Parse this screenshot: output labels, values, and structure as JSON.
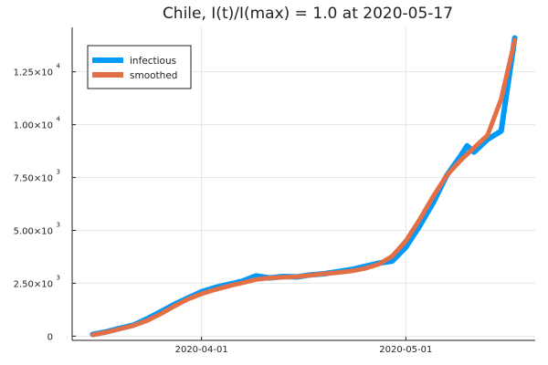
{
  "chart_data": {
    "type": "line",
    "title": "Chile,  I(t)/I(max) = 1.0 at 2020-05-17",
    "xlabel": "",
    "ylabel": "",
    "xlim": [
      "2020-03-13",
      "2020-05-20"
    ],
    "ylim": [
      -200,
      14600
    ],
    "x_ticks": [
      {
        "date": "2020-04-01",
        "label": "2020-04-01"
      },
      {
        "date": "2020-05-01",
        "label": "2020-05-01"
      }
    ],
    "y_ticks": [
      {
        "value": 0,
        "mantissa": "0",
        "exponent": ""
      },
      {
        "value": 2500,
        "mantissa": "2.50×10",
        "exponent": "3"
      },
      {
        "value": 5000,
        "mantissa": "5.00×10",
        "exponent": "3"
      },
      {
        "value": 7500,
        "mantissa": "7.50×10",
        "exponent": "3"
      },
      {
        "value": 10000,
        "mantissa": "1.00×10",
        "exponent": "4"
      },
      {
        "value": 12500,
        "mantissa": "1.25×10",
        "exponent": "4"
      }
    ],
    "grid": true,
    "legend_position": "top-left",
    "series": [
      {
        "name": "infectious",
        "color": "#009af9",
        "x": [
          "2020-03-16",
          "2020-03-18",
          "2020-03-20",
          "2020-03-22",
          "2020-03-24",
          "2020-03-26",
          "2020-03-28",
          "2020-03-30",
          "2020-04-01",
          "2020-04-03",
          "2020-04-05",
          "2020-04-07",
          "2020-04-09",
          "2020-04-11",
          "2020-04-13",
          "2020-04-15",
          "2020-04-17",
          "2020-04-19",
          "2020-04-21",
          "2020-04-23",
          "2020-04-25",
          "2020-04-27",
          "2020-04-29",
          "2020-05-01",
          "2020-05-03",
          "2020-05-05",
          "2020-05-07",
          "2020-05-09",
          "2020-05-10",
          "2020-05-11",
          "2020-05-13",
          "2020-05-15",
          "2020-05-17"
        ],
        "values": [
          80,
          200,
          370,
          520,
          820,
          1150,
          1500,
          1800,
          2100,
          2300,
          2450,
          2600,
          2850,
          2750,
          2820,
          2800,
          2900,
          2950,
          3050,
          3150,
          3300,
          3450,
          3550,
          4200,
          5200,
          6300,
          7600,
          8500,
          9000,
          8700,
          9300,
          9700,
          14100
        ]
      },
      {
        "name": "smoothed",
        "color": "#e26f46",
        "x": [
          "2020-03-16",
          "2020-03-18",
          "2020-03-20",
          "2020-03-22",
          "2020-03-24",
          "2020-03-26",
          "2020-03-28",
          "2020-03-30",
          "2020-04-01",
          "2020-04-03",
          "2020-04-05",
          "2020-04-07",
          "2020-04-09",
          "2020-04-11",
          "2020-04-13",
          "2020-04-15",
          "2020-04-17",
          "2020-04-19",
          "2020-04-21",
          "2020-04-23",
          "2020-04-25",
          "2020-04-27",
          "2020-04-29",
          "2020-05-01",
          "2020-05-03",
          "2020-05-05",
          "2020-05-07",
          "2020-05-09",
          "2020-05-11",
          "2020-05-13",
          "2020-05-15",
          "2020-05-17"
        ],
        "values": [
          60,
          180,
          340,
          500,
          730,
          1050,
          1420,
          1750,
          2000,
          2200,
          2370,
          2520,
          2680,
          2750,
          2780,
          2810,
          2880,
          2950,
          3000,
          3080,
          3200,
          3400,
          3780,
          4500,
          5500,
          6600,
          7600,
          8300,
          8900,
          9500,
          11200,
          14000
        ]
      }
    ]
  }
}
